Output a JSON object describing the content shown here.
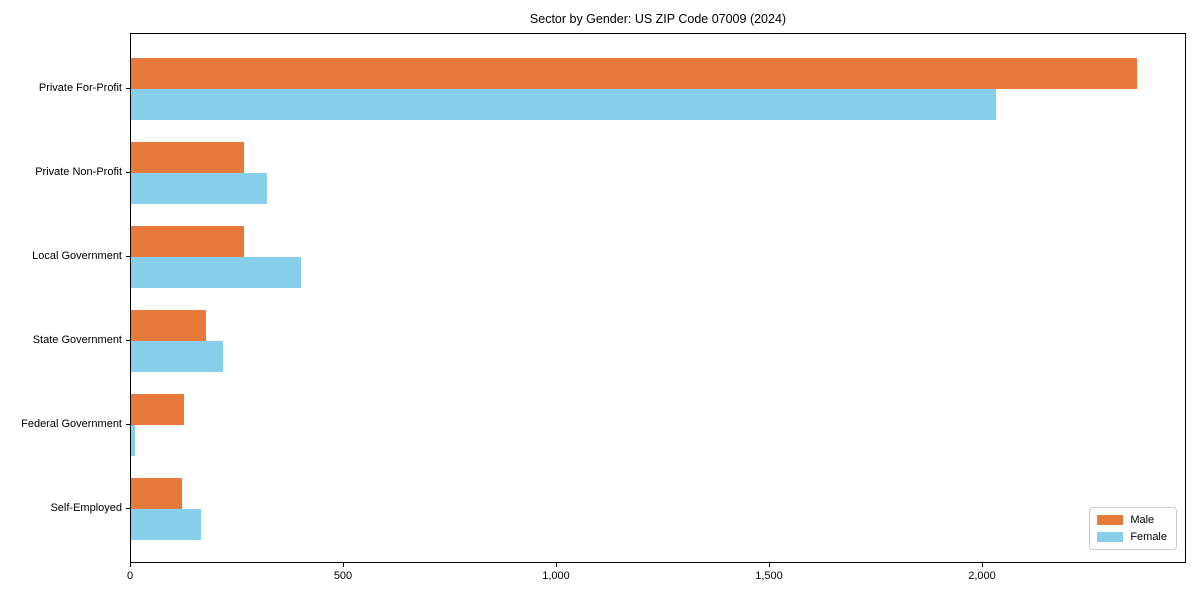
{
  "chart_data": {
    "type": "bar",
    "orientation": "horizontal",
    "title": "Sector by Gender: US ZIP Code 07009 (2024)",
    "categories": [
      "Private For-Profit",
      "Private Non-Profit",
      "Local Government",
      "State Government",
      "Federal Government",
      "Self-Employed"
    ],
    "series": [
      {
        "name": "Male",
        "color": "#e8793d",
        "values": [
          2360,
          265,
          265,
          175,
          125,
          120
        ]
      },
      {
        "name": "Female",
        "color": "#87ceeb",
        "values": [
          2030,
          320,
          400,
          215,
          10,
          165
        ]
      }
    ],
    "xlabel": "",
    "ylabel": "",
    "xlim": [
      0,
      2478
    ],
    "xticks": [
      0,
      500,
      1000,
      1500,
      2000
    ],
    "xtick_labels": [
      "0",
      "500",
      "1,000",
      "1,500",
      "2,000"
    ],
    "grid": false,
    "legend": {
      "position": "lower-right",
      "entries": [
        "Male",
        "Female"
      ]
    },
    "colors": {
      "axis": "#000000",
      "background": "#ffffff",
      "legend_border": "#cccccc"
    }
  }
}
